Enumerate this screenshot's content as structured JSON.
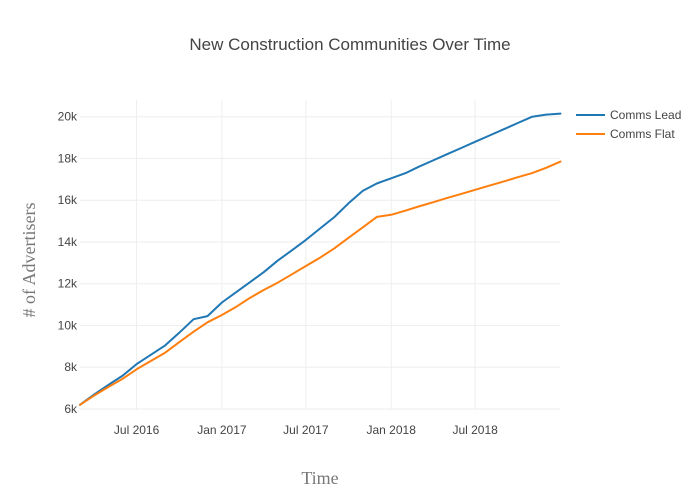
{
  "chart_data": {
    "type": "line",
    "title": "New Construction Communities Over Time",
    "xlabel": "Time",
    "ylabel": "# of Advertisers",
    "x": [
      "2016-03-01",
      "2016-04-01",
      "2016-05-01",
      "2016-06-01",
      "2016-07-01",
      "2016-08-01",
      "2016-09-01",
      "2016-10-01",
      "2016-11-01",
      "2016-12-01",
      "2017-01-01",
      "2017-02-01",
      "2017-03-01",
      "2017-04-01",
      "2017-05-01",
      "2017-06-01",
      "2017-07-01",
      "2017-08-01",
      "2017-09-01",
      "2017-10-01",
      "2017-11-01",
      "2017-12-01",
      "2018-01-01",
      "2018-02-01",
      "2018-03-01",
      "2018-04-01",
      "2018-05-01",
      "2018-06-01",
      "2018-07-01",
      "2018-08-01",
      "2018-09-01",
      "2018-10-01",
      "2018-11-01",
      "2018-12-01",
      "2019-01-01"
    ],
    "series": [
      {
        "name": "Comms Lead",
        "color": "#1f77b4",
        "values": [
          6200,
          6700,
          7150,
          7600,
          8150,
          8600,
          9050,
          9650,
          10300,
          10450,
          11100,
          11600,
          12050,
          12550,
          13100,
          13600,
          14100,
          14650,
          15200,
          15850,
          16450,
          16800,
          17050,
          17300,
          17600,
          17900,
          18200,
          18500,
          18800,
          19100,
          19400,
          19700,
          20000,
          20100,
          20150
        ]
      },
      {
        "name": "Comms Flat",
        "color": "#ff7f0e",
        "values": [
          6200,
          6650,
          7050,
          7450,
          7900,
          8300,
          8700,
          9200,
          9700,
          10150,
          10500,
          10900,
          11300,
          11700,
          12050,
          12450,
          12850,
          13250,
          13700,
          14200,
          14700,
          15200,
          15300,
          15500,
          15700,
          15900,
          16100,
          16300,
          16500,
          16700,
          16900,
          17100,
          17300,
          17550,
          17850
        ]
      }
    ],
    "x_tick_values": [
      "2016-07-01",
      "2017-01-01",
      "2017-07-01",
      "2018-01-01",
      "2018-07-01"
    ],
    "x_tick_labels": [
      "Jul 2016",
      "Jan 2017",
      "Jul 2017",
      "Jan 2018",
      "Jul 2018"
    ],
    "xlim": [
      "2016-03-01",
      "2018-12-31"
    ],
    "y_tick_values": [
      6000,
      8000,
      10000,
      12000,
      14000,
      16000,
      18000,
      20000
    ],
    "y_tick_labels": [
      "6k",
      "8k",
      "10k",
      "12k",
      "14k",
      "16k",
      "18k",
      "20k"
    ],
    "ylim": [
      5950,
      20800
    ],
    "grid": true,
    "legend": "top-right"
  }
}
